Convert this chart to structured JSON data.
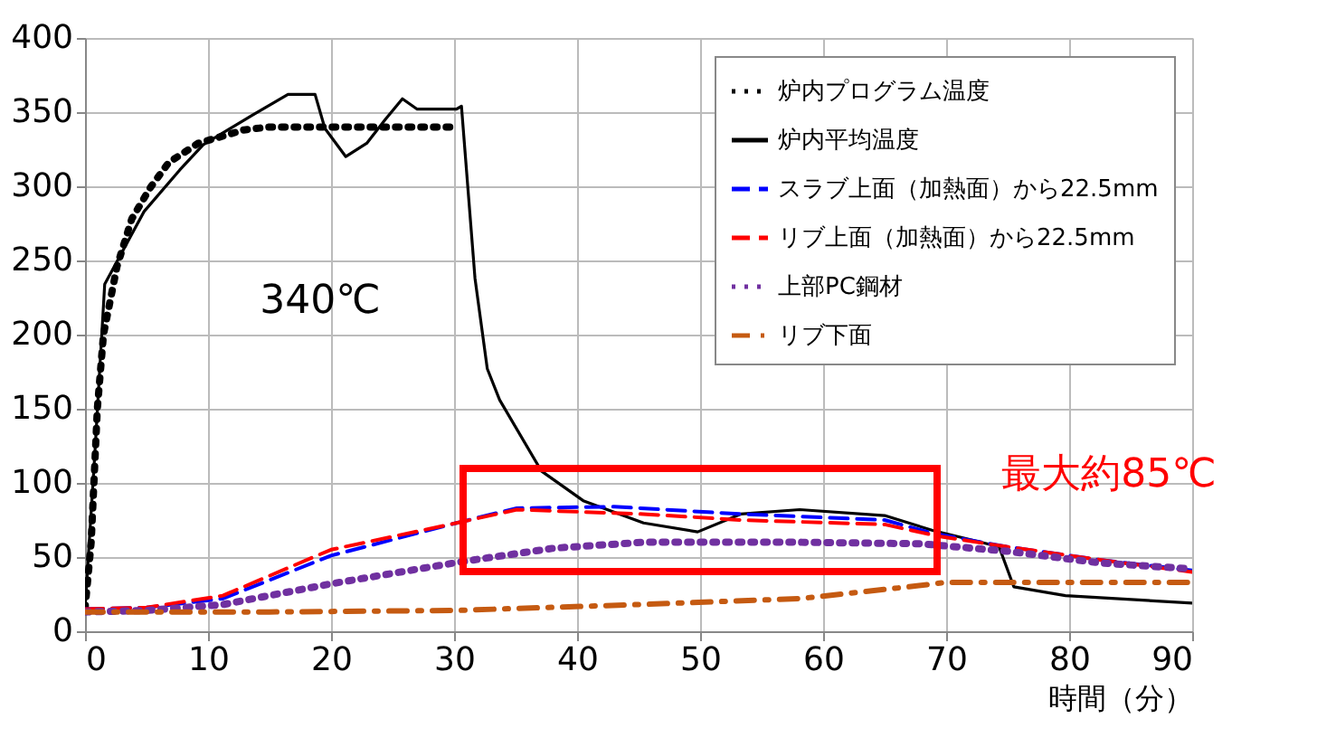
{
  "chart_data": {
    "type": "line",
    "xlabel": "時間（分）",
    "xlim": [
      0,
      90
    ],
    "xticks": [
      0,
      10,
      20,
      30,
      40,
      50,
      60,
      70,
      80,
      90
    ],
    "ylim": [
      0,
      400
    ],
    "yticks": [
      0,
      50,
      100,
      150,
      200,
      250,
      300,
      350,
      400
    ],
    "grid": true,
    "legend": "top right",
    "series": [
      {
        "name": "炉内プログラム温度",
        "color": "#000000",
        "line_style": "dotted",
        "x": [
          0,
          0.5,
          1,
          1.5,
          2.6,
          3.8,
          5.3,
          6.8,
          9.2,
          12.9,
          15,
          30
        ],
        "values": [
          15,
          60,
          150,
          200,
          246,
          278,
          299,
          316,
          329,
          338,
          340,
          340
        ]
      },
      {
        "name": "炉内平均温度",
        "color": "#000000",
        "line_style": "solid",
        "x": [
          0,
          0.8,
          1.6,
          4.8,
          7.7,
          9.6,
          13.6,
          16.5,
          18.7,
          19.5,
          21.2,
          22.9,
          24.4,
          25.8,
          27,
          30.2,
          30.6,
          31.7,
          32.7,
          33.7,
          37.1,
          40.5,
          45.4,
          49.8,
          53.3,
          58.1,
          65,
          68.9,
          74.3,
          75.5,
          79.7,
          90
        ],
        "values": [
          15,
          120,
          234,
          283,
          311,
          328,
          348,
          362,
          362,
          339,
          320,
          329,
          345,
          359,
          352,
          352,
          354,
          238,
          177,
          156,
          108,
          88,
          73,
          67,
          79,
          82,
          78,
          68,
          57,
          30,
          24,
          19
        ]
      },
      {
        "name": "スラブ上面（加熱面）から22.5mm",
        "color": "#0000ff",
        "line_style": "dashed",
        "x": [
          0,
          5,
          11.2,
          20,
          30.2,
          35.1,
          43,
          53.3,
          65,
          68.9,
          74.9,
          82.6,
          90
        ],
        "values": [
          15,
          16,
          22,
          51,
          73,
          83,
          84,
          79,
          75,
          66,
          57,
          48,
          41
        ]
      },
      {
        "name": "リブ上面（加熱面）から22.5mm",
        "color": "#ff0000",
        "line_style": "dashed",
        "x": [
          0,
          5,
          11.2,
          20,
          30.2,
          35.1,
          45.4,
          53.3,
          65,
          69.4,
          74.9,
          82.6,
          90
        ],
        "values": [
          15,
          16,
          24,
          55,
          73,
          82,
          79,
          75,
          72,
          64,
          57,
          48,
          40
        ]
      },
      {
        "name": "上部PC鋼材",
        "color": "#7030a0",
        "line_style": "dotted",
        "x": [
          0,
          5,
          11.2,
          20,
          30.7,
          38.1,
          45.4,
          58.1,
          67.9,
          74.9,
          82.6,
          90
        ],
        "values": [
          13,
          14,
          18,
          32,
          47,
          56,
          60,
          60,
          59,
          54,
          46,
          42
        ]
      },
      {
        "name": "リブ下面",
        "color": "#c55a11",
        "line_style": "dashdot",
        "x": [
          0,
          15,
          30,
          45,
          58.1,
          67,
          70,
          80,
          90
        ],
        "values": [
          13,
          13,
          14,
          18,
          22,
          30,
          33,
          33,
          33
        ]
      }
    ],
    "annotations": [
      "340℃",
      "最大約85℃"
    ]
  }
}
